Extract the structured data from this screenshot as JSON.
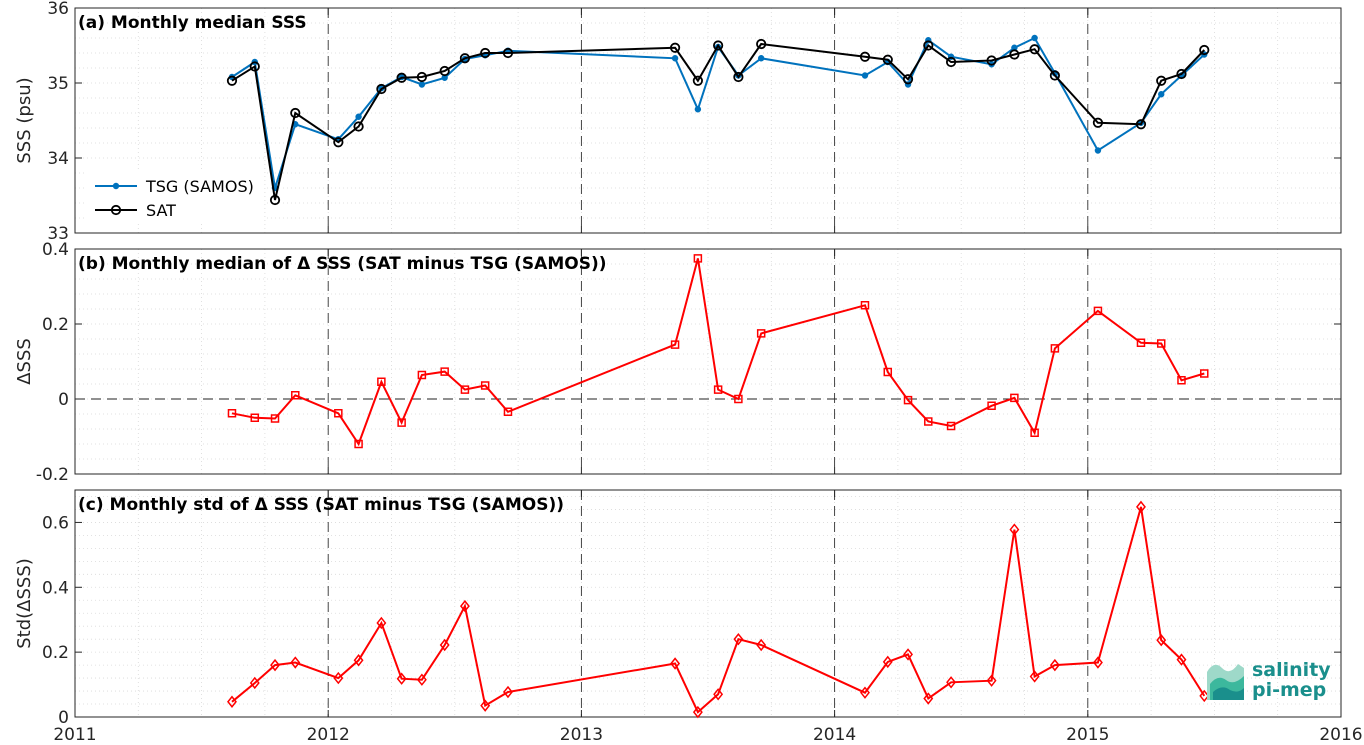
{
  "chart_data": [
    {
      "type": "line",
      "title": "(a) Monthly median SSS",
      "xlabel": "",
      "ylabel": "SSS (psu)",
      "xlim": [
        2011,
        2016
      ],
      "ylim": [
        33,
        36
      ],
      "yticks": [
        "33",
        "34",
        "35",
        "36"
      ],
      "grid": true,
      "legend_position": "left",
      "x": [
        2011.62,
        2011.71,
        2011.79,
        2011.87,
        2012.04,
        2012.12,
        2012.21,
        2012.29,
        2012.37,
        2012.46,
        2012.54,
        2012.62,
        2012.71,
        2013.37,
        2013.46,
        2013.54,
        2013.62,
        2013.71,
        2014.12,
        2014.21,
        2014.29,
        2014.37,
        2014.46,
        2014.62,
        2014.71,
        2014.79,
        2014.87,
        2015.04,
        2015.21,
        2015.29,
        2015.37,
        2015.46
      ],
      "series": [
        {
          "name": "TSG (SAMOS)",
          "color": "#0072bd",
          "marker": "dot",
          "values": [
            35.08,
            35.28,
            33.6,
            34.45,
            34.25,
            34.55,
            34.93,
            35.08,
            34.98,
            35.07,
            35.32,
            35.37,
            35.43,
            35.33,
            34.65,
            35.48,
            35.1,
            35.33,
            35.1,
            35.28,
            34.98,
            35.57,
            35.35,
            35.25,
            35.47,
            35.6,
            35.13,
            34.1,
            34.47,
            34.85,
            35.1,
            35.38
          ]
        },
        {
          "name": "SAT",
          "color": "#000000",
          "marker": "circle",
          "values": [
            35.03,
            35.22,
            33.44,
            34.6,
            34.21,
            34.42,
            34.92,
            35.07,
            35.08,
            35.16,
            35.33,
            35.4,
            35.4,
            35.47,
            35.03,
            35.5,
            35.08,
            35.52,
            35.35,
            35.31,
            35.05,
            35.5,
            35.28,
            35.3,
            35.38,
            35.45,
            35.1,
            34.47,
            34.45,
            35.03,
            35.12,
            35.44
          ]
        }
      ]
    },
    {
      "type": "line",
      "title": "(b) Monthly median of Δ SSS (SAT minus TSG (SAMOS))",
      "xlabel": "",
      "ylabel": "ΔSSS",
      "xlim": [
        2011,
        2016
      ],
      "ylim": [
        -0.2,
        0.4
      ],
      "yticks": [
        "-0.2",
        "0",
        "0.2",
        "0.4"
      ],
      "grid": true,
      "zero_line": true,
      "x": [
        2011.62,
        2011.71,
        2011.79,
        2011.87,
        2012.04,
        2012.12,
        2012.21,
        2012.29,
        2012.37,
        2012.46,
        2012.54,
        2012.62,
        2012.71,
        2013.37,
        2013.46,
        2013.54,
        2013.62,
        2013.71,
        2014.12,
        2014.21,
        2014.29,
        2014.37,
        2014.46,
        2014.62,
        2014.71,
        2014.79,
        2014.87,
        2015.04,
        2015.21,
        2015.29,
        2015.37,
        2015.46
      ],
      "series": [
        {
          "color": "#ff0000",
          "marker": "square",
          "values": [
            -0.038,
            -0.05,
            -0.052,
            0.01,
            -0.038,
            -0.12,
            0.046,
            -0.063,
            0.064,
            0.073,
            0.025,
            0.036,
            -0.034,
            0.145,
            0.375,
            0.025,
            0.0,
            0.175,
            0.25,
            0.072,
            -0.003,
            -0.06,
            -0.072,
            -0.018,
            0.003,
            -0.09,
            0.135,
            0.235,
            0.15,
            0.148,
            0.05,
            0.068
          ]
        }
      ]
    },
    {
      "type": "line",
      "title": "(c) Monthly std of Δ SSS (SAT minus TSG (SAMOS))",
      "xlabel": "",
      "ylabel": "Std(ΔSSS)",
      "xlim": [
        2011,
        2016
      ],
      "ylim": [
        0,
        0.7
      ],
      "yticks": [
        "0",
        "0.2",
        "0.4",
        "0.6"
      ],
      "xticks": [
        "2011",
        "2012",
        "2013",
        "2014",
        "2015",
        "2016"
      ],
      "grid": true,
      "x": [
        2011.62,
        2011.71,
        2011.79,
        2011.87,
        2012.04,
        2012.12,
        2012.21,
        2012.29,
        2012.37,
        2012.46,
        2012.54,
        2012.62,
        2012.71,
        2013.37,
        2013.46,
        2013.54,
        2013.62,
        2013.71,
        2014.12,
        2014.21,
        2014.29,
        2014.37,
        2014.46,
        2014.62,
        2014.71,
        2014.79,
        2014.87,
        2015.04,
        2015.21,
        2015.29,
        2015.37,
        2015.46
      ],
      "series": [
        {
          "color": "#ff0000",
          "marker": "diamond",
          "values": [
            0.047,
            0.105,
            0.16,
            0.168,
            0.12,
            0.175,
            0.29,
            0.118,
            0.115,
            0.222,
            0.342,
            0.035,
            0.077,
            0.165,
            0.015,
            0.07,
            0.24,
            0.222,
            0.075,
            0.17,
            0.193,
            0.057,
            0.107,
            0.112,
            0.578,
            0.125,
            0.16,
            0.168,
            0.648,
            0.237,
            0.177,
            0.065
          ]
        }
      ]
    }
  ],
  "logo": {
    "line1": "salinity",
    "line2": "pi-mep",
    "color": "#1a8f8c"
  }
}
